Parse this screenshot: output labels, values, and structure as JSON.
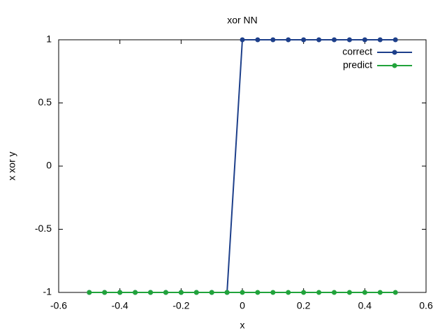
{
  "chart_data": {
    "type": "line",
    "title": "xor NN",
    "x_label": "x",
    "y_label": "x xor y",
    "x": [
      -0.5,
      -0.45,
      -0.4,
      -0.35,
      -0.3,
      -0.25,
      -0.2,
      -0.15,
      -0.1,
      -0.05,
      0,
      0.05,
      0.1,
      0.15,
      0.2,
      0.25,
      0.3,
      0.35,
      0.4,
      0.45,
      0.5
    ],
    "series": [
      {
        "name": "correct",
        "color": "#1d3f8a",
        "values": [
          -1,
          -1,
          -1,
          -1,
          -1,
          -1,
          -1,
          -1,
          -1,
          -1,
          1,
          1,
          1,
          1,
          1,
          1,
          1,
          1,
          1,
          1,
          1
        ]
      },
      {
        "name": "predict",
        "color": "#21a33b",
        "values": [
          -1,
          -1,
          -1,
          -1,
          -1,
          -1,
          -1,
          -1,
          -1,
          -1,
          -1,
          -1,
          -1,
          -1,
          -1,
          -1,
          -1,
          -1,
          -1,
          -1,
          -1
        ]
      }
    ],
    "xlim": [
      -0.6,
      0.6
    ],
    "xticks": [
      -0.6,
      -0.4,
      -0.2,
      0,
      0.2,
      0.4,
      0.6
    ],
    "ylim": [
      -1,
      1
    ],
    "yticks": [
      -1,
      -0.5,
      0,
      0.5,
      1
    ],
    "legend": "top-right",
    "grid": false
  }
}
